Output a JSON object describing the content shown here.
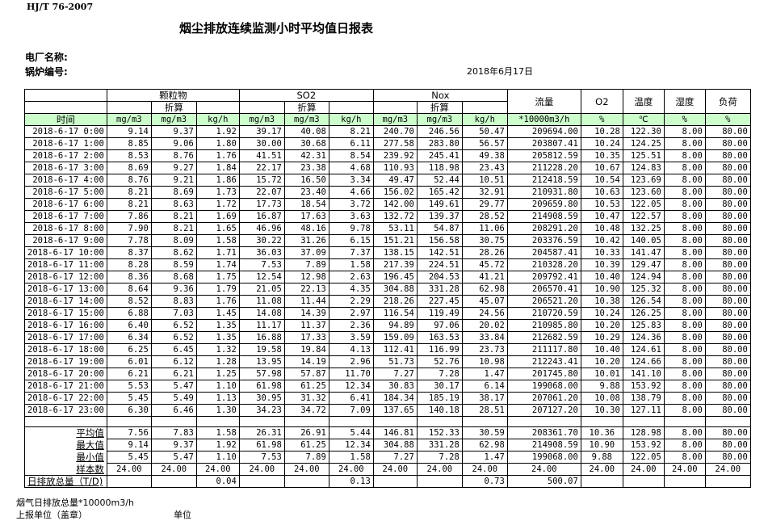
{
  "standard": "HJ/T  76-2007",
  "title": "烟尘排放连续监测小时平均值日报表",
  "plant_label": "电厂名称:",
  "boiler_label": "锅炉编号:",
  "date": "2018年6月17日",
  "header": {
    "groups": [
      "颗粒物",
      "SO2",
      "Nox"
    ],
    "converted": "折算",
    "flow": "流量",
    "o2": "O2",
    "temp": "温度",
    "humidity": "湿度",
    "load": "负荷",
    "time": "时间",
    "units": [
      "mg/m3",
      "mg/m3",
      "kg/h",
      "mg/m3",
      "mg/m3",
      "kg/h",
      "mg/m3",
      "mg/m3",
      "kg/h",
      "*10000m3/h",
      "%",
      "℃",
      "%",
      "%"
    ]
  },
  "rows": [
    [
      "2018-6-17 0:00",
      "9.14",
      "9.37",
      "1.92",
      "39.17",
      "40.08",
      "8.21",
      "240.70",
      "246.56",
      "50.47",
      "209694.00",
      "10.28",
      "122.30",
      "8.00",
      "80.00"
    ],
    [
      "2018-6-17 1:00",
      "8.85",
      "9.06",
      "1.80",
      "30.00",
      "30.68",
      "6.11",
      "277.58",
      "283.80",
      "56.57",
      "203807.41",
      "10.24",
      "124.25",
      "8.00",
      "80.00"
    ],
    [
      "2018-6-17 2:00",
      "8.53",
      "8.76",
      "1.76",
      "41.51",
      "42.31",
      "8.54",
      "239.92",
      "245.41",
      "49.38",
      "205812.59",
      "10.35",
      "125.51",
      "8.00",
      "80.00"
    ],
    [
      "2018-6-17 3:00",
      "8.69",
      "9.27",
      "1.84",
      "22.17",
      "23.38",
      "4.68",
      "110.93",
      "118.98",
      "23.43",
      "211228.20",
      "10.67",
      "124.83",
      "8.00",
      "80.00"
    ],
    [
      "2018-6-17 4:00",
      "8.76",
      "9.21",
      "1.86",
      "15.72",
      "16.50",
      "3.34",
      "49.47",
      "52.44",
      "10.51",
      "212418.59",
      "10.54",
      "123.69",
      "8.00",
      "80.00"
    ],
    [
      "2018-6-17 5:00",
      "8.21",
      "8.69",
      "1.73",
      "22.07",
      "23.40",
      "4.66",
      "156.02",
      "165.42",
      "32.91",
      "210931.80",
      "10.63",
      "123.60",
      "8.00",
      "80.00"
    ],
    [
      "2018-6-17 6:00",
      "8.21",
      "8.63",
      "1.72",
      "17.73",
      "18.54",
      "3.72",
      "142.00",
      "149.61",
      "29.77",
      "209659.80",
      "10.53",
      "122.05",
      "8.00",
      "80.00"
    ],
    [
      "2018-6-17 7:00",
      "7.86",
      "8.21",
      "1.69",
      "16.87",
      "17.63",
      "3.63",
      "132.72",
      "139.37",
      "28.52",
      "214908.59",
      "10.47",
      "122.57",
      "8.00",
      "80.00"
    ],
    [
      "2018-6-17 8:00",
      "7.90",
      "8.21",
      "1.65",
      "46.96",
      "48.16",
      "9.78",
      "53.11",
      "54.87",
      "11.06",
      "208291.20",
      "10.48",
      "132.25",
      "8.00",
      "80.00"
    ],
    [
      "2018-6-17 9:00",
      "7.78",
      "8.09",
      "1.58",
      "30.22",
      "31.26",
      "6.15",
      "151.21",
      "156.58",
      "30.75",
      "203376.59",
      "10.42",
      "140.05",
      "8.00",
      "80.00"
    ],
    [
      "2018-6-17 10:00",
      "8.37",
      "8.62",
      "1.71",
      "36.03",
      "37.09",
      "7.37",
      "138.15",
      "142.51",
      "28.26",
      "204587.41",
      "10.33",
      "141.47",
      "8.00",
      "80.00"
    ],
    [
      "2018-6-17 11:00",
      "8.28",
      "8.59",
      "1.74",
      "7.53",
      "7.89",
      "1.58",
      "217.39",
      "224.51",
      "45.72",
      "210328.20",
      "10.39",
      "129.47",
      "8.00",
      "80.00"
    ],
    [
      "2018-6-17 12:00",
      "8.36",
      "8.68",
      "1.75",
      "12.54",
      "12.98",
      "2.63",
      "196.45",
      "204.53",
      "41.21",
      "209792.41",
      "10.40",
      "124.94",
      "8.00",
      "80.00"
    ],
    [
      "2018-6-17 13:00",
      "8.64",
      "9.36",
      "1.79",
      "21.05",
      "22.13",
      "4.35",
      "304.88",
      "331.28",
      "62.98",
      "206570.41",
      "10.90",
      "125.32",
      "8.00",
      "80.00"
    ],
    [
      "2018-6-17 14:00",
      "8.52",
      "8.83",
      "1.76",
      "11.08",
      "11.44",
      "2.29",
      "218.26",
      "227.45",
      "45.07",
      "206521.20",
      "10.38",
      "126.54",
      "8.00",
      "80.00"
    ],
    [
      "2018-6-17 15:00",
      "6.88",
      "7.03",
      "1.45",
      "14.08",
      "14.39",
      "2.97",
      "116.54",
      "119.49",
      "24.56",
      "210720.59",
      "10.24",
      "126.25",
      "8.00",
      "80.00"
    ],
    [
      "2018-6-17 16:00",
      "6.40",
      "6.52",
      "1.35",
      "11.17",
      "11.37",
      "2.36",
      "94.89",
      "97.06",
      "20.02",
      "210985.80",
      "10.20",
      "125.83",
      "8.00",
      "80.00"
    ],
    [
      "2018-6-17 17:00",
      "6.34",
      "6.52",
      "1.35",
      "16.88",
      "17.33",
      "3.59",
      "159.09",
      "163.53",
      "33.84",
      "212682.59",
      "10.29",
      "124.36",
      "8.00",
      "80.00"
    ],
    [
      "2018-6-17 18:00",
      "6.25",
      "6.45",
      "1.32",
      "19.58",
      "19.84",
      "4.13",
      "112.41",
      "116.99",
      "23.73",
      "211117.80",
      "10.40",
      "124.61",
      "8.00",
      "80.00"
    ],
    [
      "2018-6-17 19:00",
      "6.01",
      "6.12",
      "1.28",
      "13.95",
      "14.19",
      "2.96",
      "51.73",
      "52.76",
      "10.98",
      "212243.41",
      "10.20",
      "124.66",
      "8.00",
      "80.00"
    ],
    [
      "2018-6-17 20:00",
      "6.21",
      "6.21",
      "1.25",
      "57.98",
      "57.87",
      "11.70",
      "7.27",
      "7.28",
      "1.47",
      "201745.80",
      "10.01",
      "141.10",
      "8.00",
      "80.00"
    ],
    [
      "2018-6-17 21:00",
      "5.53",
      "5.47",
      "1.10",
      "61.98",
      "61.25",
      "12.34",
      "30.83",
      "30.17",
      "6.14",
      "199068.00",
      "9.88",
      "153.92",
      "8.00",
      "80.00"
    ],
    [
      "2018-6-17 22:00",
      "5.45",
      "5.49",
      "1.13",
      "30.95",
      "31.32",
      "6.41",
      "184.34",
      "185.19",
      "38.17",
      "207061.20",
      "10.08",
      "138.79",
      "8.00",
      "80.00"
    ],
    [
      "2018-6-17 23:00",
      "6.30",
      "6.46",
      "1.30",
      "34.23",
      "34.72",
      "7.09",
      "137.65",
      "140.18",
      "28.51",
      "207127.20",
      "10.30",
      "127.11",
      "8.00",
      "80.00"
    ]
  ],
  "summary": [
    [
      "平均值",
      "7.56",
      "7.83",
      "1.58",
      "26.31",
      "26.91",
      "5.44",
      "146.81",
      "152.33",
      "30.59",
      "208361.70",
      "10.36",
      "128.98",
      "8.00",
      "80.00"
    ],
    [
      "最大值",
      "9.14",
      "9.37",
      "1.92",
      "61.98",
      "61.25",
      "12.34",
      "304.88",
      "331.28",
      "62.98",
      "214908.59",
      "10.90",
      "153.92",
      "8.00",
      "80.00"
    ],
    [
      "最小值",
      "5.45",
      "5.47",
      "1.10",
      "7.53",
      "7.89",
      "1.58",
      "7.27",
      "7.28",
      "1.47",
      "199068.00",
      "9.88",
      "122.05",
      "8.00",
      "80.00"
    ],
    [
      "样本数",
      "24.00",
      "24.00",
      "24.00",
      "24.00",
      "24.00",
      "24.00",
      "24.00",
      "24.00",
      "24.00",
      "24.00",
      "24.00",
      "24.00",
      "24.00",
      "24.00"
    ],
    [
      "日排放总量（T/D)",
      "",
      "",
      "0.04",
      "",
      "",
      "0.13",
      "",
      "",
      "0.73",
      "500.07",
      "",
      "",
      "",
      ""
    ]
  ],
  "footer": {
    "flue_total": "烟气日排放总量*10000m3/h",
    "reporting_unit": "上报单位（盖章）",
    "unit": "单位"
  },
  "colors": {
    "unit_row_bg": "#ccffcc"
  }
}
